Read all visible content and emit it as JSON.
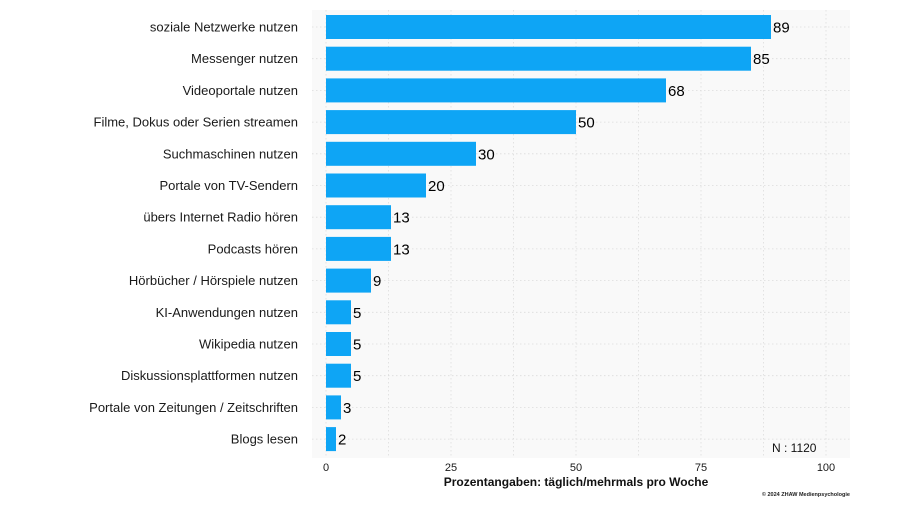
{
  "chart_data": {
    "type": "bar",
    "orientation": "horizontal",
    "categories": [
      "soziale Netzwerke nutzen",
      "Messenger nutzen",
      "Videoportale nutzen",
      "Filme, Dokus oder Serien streamen",
      "Suchmaschinen nutzen",
      "Portale von TV-Sendern",
      "übers Internet Radio hören",
      "Podcasts hören",
      "Hörbücher / Hörspiele nutzen",
      "KI-Anwendungen nutzen",
      "Wikipedia nutzen",
      "Diskussionsplattformen nutzen",
      "Portale von Zeitungen / Zeitschriften",
      "Blogs lesen"
    ],
    "values": [
      89,
      85,
      68,
      50,
      30,
      20,
      13,
      13,
      9,
      5,
      5,
      5,
      3,
      2
    ],
    "xlabel": "Prozentangaben: täglich/mehrmals pro Woche",
    "ylabel": "",
    "xlim": [
      0,
      100
    ],
    "xticks": [
      0,
      25,
      50,
      75,
      100
    ],
    "grid": true,
    "bar_color": "#0ea5f5",
    "sample_note": "N : 1120",
    "copyright": "© 2024 ZHAW Medienpsychologie"
  }
}
